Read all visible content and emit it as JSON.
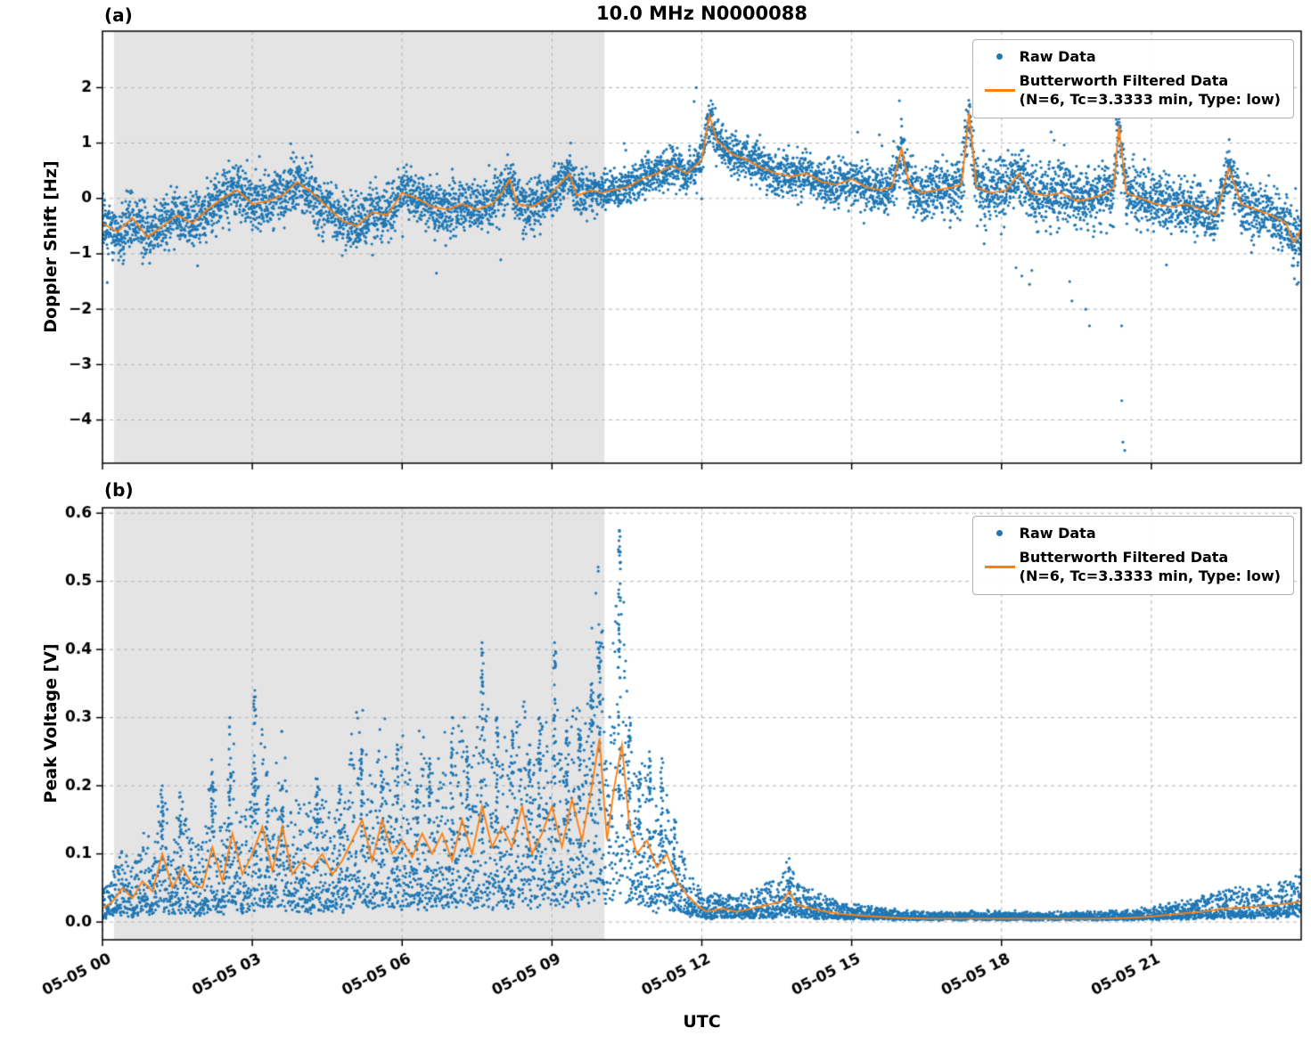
{
  "title": "10.0 MHz N0000088",
  "xlabel": "UTC",
  "legend": {
    "raw_label": "Raw Data",
    "filtered_label": "Butterworth Filtered Data",
    "filtered_sublabel": "(N=6, Tc=3.3333 min, Type: low)"
  },
  "colors": {
    "raw": "#1f77b4",
    "filtered": "#ff7f0e",
    "shade": "#e4e4e4",
    "grid": "#b5b5b5",
    "axes": "#000000"
  },
  "chart_data": [
    {
      "type": "scatter",
      "panel_label": "(a)",
      "title": "10.0 MHz N0000088",
      "ylabel": "Doppler Shift [Hz]",
      "xlabel": "UTC",
      "xlim": [
        0,
        24
      ],
      "ylim": [
        -4.78,
        3.02
      ],
      "xticks": [
        0,
        3,
        6,
        9,
        12,
        15,
        18,
        21
      ],
      "xtick_labels": [
        "05-05 00",
        "05-05 03",
        "05-05 06",
        "05-05 09",
        "05-05 12",
        "05-05 15",
        "05-05 18",
        "05-05 21"
      ],
      "show_xtick_labels": false,
      "yticks": [
        2,
        1,
        0,
        -1,
        -2,
        -3,
        -4
      ],
      "ytick_labels": [
        "2",
        "1",
        "0",
        "−1",
        "−2",
        "−3",
        "−4"
      ],
      "shade_region": [
        0.23,
        10.05
      ],
      "grid": true,
      "legend_position": "upper right",
      "series": [
        {
          "name": "Raw Data",
          "type": "scatter",
          "noise_sigma": [
            [
              0,
              0.24
            ],
            [
              6,
              0.24
            ],
            [
              9,
              0.2
            ],
            [
              11,
              0.18
            ],
            [
              13,
              0.18
            ],
            [
              15,
              0.2
            ],
            [
              16.5,
              0.24
            ],
            [
              18,
              0.28
            ],
            [
              20,
              0.28
            ],
            [
              22,
              0.24
            ],
            [
              24,
              0.26
            ]
          ],
          "outliers": [
            [
              11.85,
              1.75
            ],
            [
              11.9,
              2.0
            ],
            [
              12.2,
              1.7
            ],
            [
              15.55,
              1.15
            ],
            [
              15.6,
              0.95
            ],
            [
              16.05,
              1.05
            ],
            [
              17.3,
              1.6
            ],
            [
              17.35,
              1.7
            ],
            [
              17.5,
              2.45
            ],
            [
              18.3,
              -1.25
            ],
            [
              18.4,
              -1.4
            ],
            [
              18.55,
              -1.55
            ],
            [
              18.6,
              -1.3
            ],
            [
              19.0,
              1.2
            ],
            [
              19.05,
              1.05
            ],
            [
              19.35,
              -1.5
            ],
            [
              19.4,
              -1.85
            ],
            [
              19.7,
              -2.0
            ],
            [
              19.75,
              -2.3
            ],
            [
              20.3,
              1.35
            ],
            [
              20.4,
              -2.3
            ],
            [
              20.42,
              -3.65
            ],
            [
              20.44,
              -4.4
            ],
            [
              20.46,
              -4.55
            ],
            [
              21.3,
              -1.2
            ],
            [
              22.55,
              0.85
            ],
            [
              22.6,
              0.7
            ],
            [
              23.85,
              -1.45
            ],
            [
              23.9,
              -1.55
            ]
          ]
        },
        {
          "name": "Butterworth Filtered Data (N=6, Tc=3.3333 min, Type: low)",
          "type": "line",
          "x": [
            0,
            0.3,
            0.6,
            0.9,
            1.2,
            1.5,
            1.8,
            2.1,
            2.4,
            2.7,
            3.0,
            3.3,
            3.6,
            3.9,
            4.2,
            4.5,
            4.8,
            5.1,
            5.4,
            5.7,
            6.0,
            6.3,
            6.6,
            6.9,
            7.2,
            7.5,
            7.8,
            8.0,
            8.15,
            8.3,
            8.6,
            8.9,
            9.2,
            9.35,
            9.5,
            9.8,
            10.0,
            10.2,
            10.5,
            10.8,
            11.1,
            11.4,
            11.7,
            12.0,
            12.15,
            12.3,
            12.6,
            12.9,
            13.2,
            13.5,
            13.8,
            14.1,
            14.4,
            14.7,
            15.0,
            15.3,
            15.6,
            15.8,
            16.0,
            16.15,
            16.4,
            16.7,
            17.0,
            17.2,
            17.35,
            17.5,
            17.8,
            18.1,
            18.35,
            18.6,
            18.9,
            19.2,
            19.5,
            19.8,
            20.1,
            20.25,
            20.35,
            20.5,
            20.8,
            21.1,
            21.4,
            21.7,
            22.0,
            22.3,
            22.55,
            22.8,
            23.1,
            23.4,
            23.7,
            23.85,
            24.0
          ],
          "y": [
            -0.45,
            -0.6,
            -0.35,
            -0.7,
            -0.5,
            -0.3,
            -0.45,
            -0.2,
            0.0,
            0.15,
            -0.1,
            -0.05,
            0.05,
            0.3,
            0.1,
            -0.15,
            -0.4,
            -0.5,
            -0.25,
            -0.3,
            0.1,
            0.0,
            -0.15,
            -0.2,
            -0.1,
            -0.2,
            -0.1,
            0.1,
            0.35,
            -0.1,
            -0.15,
            0.0,
            0.3,
            0.45,
            0.05,
            0.15,
            0.1,
            0.15,
            0.2,
            0.35,
            0.45,
            0.6,
            0.45,
            0.7,
            1.5,
            1.05,
            0.8,
            0.7,
            0.55,
            0.45,
            0.4,
            0.45,
            0.3,
            0.25,
            0.35,
            0.2,
            0.15,
            0.2,
            0.9,
            0.25,
            0.1,
            0.15,
            0.2,
            0.25,
            1.55,
            0.2,
            0.1,
            0.15,
            0.45,
            0.1,
            0.05,
            0.1,
            -0.05,
            0.0,
            0.1,
            0.2,
            1.3,
            0.1,
            0.0,
            -0.1,
            -0.15,
            -0.1,
            -0.2,
            -0.3,
            0.55,
            -0.1,
            -0.2,
            -0.3,
            -0.45,
            -0.8,
            -0.55
          ]
        }
      ]
    },
    {
      "type": "scatter",
      "panel_label": "(b)",
      "ylabel": "Peak Voltage [V]",
      "xlabel": "UTC",
      "xlim": [
        0,
        24
      ],
      "ylim": [
        -0.026,
        0.608
      ],
      "xticks": [
        0,
        3,
        6,
        9,
        12,
        15,
        18,
        21
      ],
      "xtick_labels": [
        "05-05 00",
        "05-05 03",
        "05-05 06",
        "05-05 09",
        "05-05 12",
        "05-05 15",
        "05-05 18",
        "05-05 21"
      ],
      "show_xtick_labels": true,
      "yticks": [
        0.0,
        0.1,
        0.2,
        0.3,
        0.4,
        0.5,
        0.6
      ],
      "ytick_labels": [
        "0.0",
        "0.1",
        "0.2",
        "0.3",
        "0.4",
        "0.5",
        "0.6"
      ],
      "shade_region": [
        0.23,
        10.05
      ],
      "grid": true,
      "legend_position": "upper right",
      "series": [
        {
          "name": "Raw Data",
          "type": "scatter",
          "spikes": [
            [
              1.2,
              0.2
            ],
            [
              1.55,
              0.19
            ],
            [
              2.2,
              0.22
            ],
            [
              2.55,
              0.3
            ],
            [
              3.05,
              0.34
            ],
            [
              3.3,
              0.22
            ],
            [
              3.6,
              0.2
            ],
            [
              4.3,
              0.21
            ],
            [
              4.75,
              0.2
            ],
            [
              5.2,
              0.25
            ],
            [
              5.6,
              0.22
            ],
            [
              5.9,
              0.26
            ],
            [
              6.3,
              0.2
            ],
            [
              6.55,
              0.24
            ],
            [
              7.0,
              0.3
            ],
            [
              7.3,
              0.25
            ],
            [
              7.6,
              0.41
            ],
            [
              7.9,
              0.3
            ],
            [
              8.2,
              0.28
            ],
            [
              8.55,
              0.26
            ],
            [
              8.75,
              0.3
            ],
            [
              9.05,
              0.41
            ],
            [
              9.3,
              0.28
            ],
            [
              9.55,
              0.31
            ],
            [
              9.8,
              0.35
            ],
            [
              9.95,
              0.41
            ],
            [
              10.35,
              0.575
            ],
            [
              10.55,
              0.3
            ],
            [
              10.75,
              0.22
            ],
            [
              10.95,
              0.25
            ],
            [
              11.2,
              0.24
            ],
            [
              11.45,
              0.15
            ],
            [
              13.75,
              0.08
            ]
          ]
        },
        {
          "name": "Butterworth Filtered Data (N=6, Tc=3.3333 min, Type: low)",
          "type": "line",
          "x": [
            0,
            0.2,
            0.4,
            0.6,
            0.8,
            1.0,
            1.2,
            1.4,
            1.6,
            1.8,
            2.0,
            2.2,
            2.4,
            2.6,
            2.8,
            3.0,
            3.2,
            3.4,
            3.6,
            3.8,
            4.0,
            4.2,
            4.4,
            4.6,
            4.8,
            5.0,
            5.2,
            5.4,
            5.6,
            5.8,
            6.0,
            6.2,
            6.4,
            6.6,
            6.8,
            7.0,
            7.2,
            7.4,
            7.6,
            7.8,
            8.0,
            8.2,
            8.4,
            8.6,
            8.8,
            9.0,
            9.2,
            9.4,
            9.6,
            9.8,
            9.95,
            10.1,
            10.25,
            10.4,
            10.55,
            10.7,
            10.9,
            11.1,
            11.3,
            11.5,
            11.7,
            11.9,
            12.1,
            12.4,
            12.7,
            13.0,
            13.3,
            13.6,
            13.75,
            13.9,
            14.2,
            14.5,
            14.8,
            15.1,
            15.5,
            16.0,
            16.5,
            17.0,
            17.5,
            18.0,
            18.5,
            19.0,
            19.5,
            20.0,
            20.5,
            21.0,
            21.5,
            22.0,
            22.5,
            23.0,
            23.5,
            24.0
          ],
          "y": [
            0.02,
            0.03,
            0.05,
            0.035,
            0.06,
            0.045,
            0.1,
            0.05,
            0.08,
            0.055,
            0.05,
            0.11,
            0.06,
            0.13,
            0.07,
            0.1,
            0.14,
            0.075,
            0.14,
            0.07,
            0.09,
            0.08,
            0.1,
            0.07,
            0.09,
            0.12,
            0.15,
            0.09,
            0.15,
            0.1,
            0.12,
            0.095,
            0.13,
            0.1,
            0.13,
            0.09,
            0.15,
            0.1,
            0.17,
            0.11,
            0.14,
            0.11,
            0.17,
            0.1,
            0.13,
            0.17,
            0.11,
            0.18,
            0.12,
            0.2,
            0.27,
            0.12,
            0.2,
            0.26,
            0.14,
            0.1,
            0.12,
            0.08,
            0.1,
            0.06,
            0.04,
            0.025,
            0.015,
            0.02,
            0.015,
            0.02,
            0.025,
            0.03,
            0.045,
            0.025,
            0.02,
            0.015,
            0.012,
            0.01,
            0.008,
            0.006,
            0.005,
            0.005,
            0.005,
            0.005,
            0.005,
            0.005,
            0.005,
            0.005,
            0.006,
            0.008,
            0.012,
            0.015,
            0.02,
            0.022,
            0.025,
            0.03
          ]
        }
      ]
    }
  ]
}
